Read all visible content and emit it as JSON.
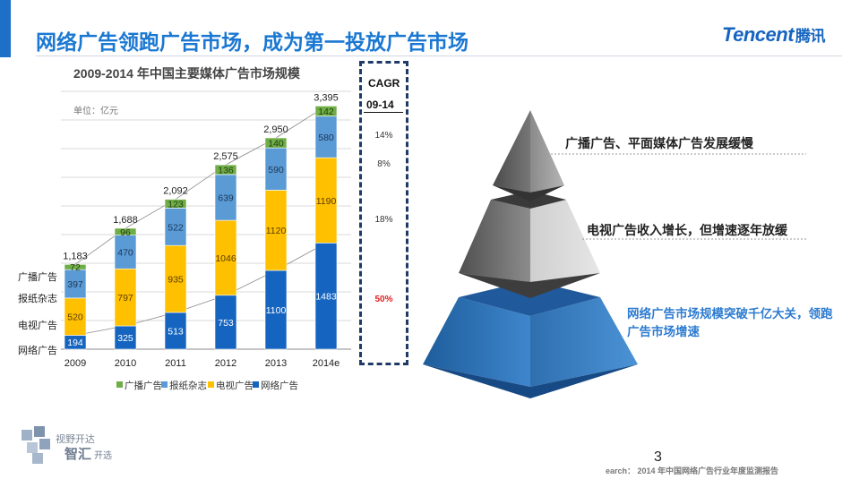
{
  "slide": {
    "title": "网络广告领跑广告市场，成为第一投放广告市场",
    "logo_text": "Tencent",
    "logo_cn": "腾讯",
    "page_number": "3",
    "source": "earch： 2014 年中国网络广告行业年度监测报告",
    "watermark_line1": "视野开达",
    "watermark_line2": "智汇",
    "watermark_line2_small": "开选",
    "accent_color": "#1a78d2"
  },
  "chart_data": {
    "type": "bar",
    "title": "2009-2014 年中国主要媒体广告市场规模",
    "unit_label": "单位：亿元",
    "categories": [
      "2009",
      "2010",
      "2011",
      "2012",
      "2013",
      "2014e"
    ],
    "stacked": true,
    "series": [
      {
        "name": "网络广告",
        "color": "#1565c0",
        "values": [
          194,
          325,
          513,
          753,
          1100,
          1483
        ]
      },
      {
        "name": "电视广告",
        "color": "#ffc000",
        "values": [
          520,
          797,
          935,
          1046,
          1120,
          1190
        ]
      },
      {
        "name": "报纸杂志",
        "color": "#5b9bd5",
        "values": [
          397,
          470,
          522,
          639,
          590,
          580
        ]
      },
      {
        "name": "广播广告",
        "color": "#70ad47",
        "values": [
          72,
          96,
          123,
          136,
          140,
          142
        ]
      }
    ],
    "totals": [
      "1,183",
      "1,688",
      "2,092",
      "2,575",
      "2,950",
      "3,395"
    ],
    "ylim": [
      0,
      3600
    ],
    "legend": [
      "广播广告",
      "报纸杂志",
      "电视广告",
      "网络广告"
    ],
    "legend_position": "bottom",
    "row_labels": [
      "广播广告",
      "报纸杂志",
      "电视广告",
      "网络广告"
    ],
    "cagr_header": [
      "CAGR",
      "09-14"
    ],
    "cagr_values": [
      {
        "text": "14%",
        "highlight": false
      },
      {
        "text": "8%",
        "highlight": false
      },
      {
        "text": "18%",
        "highlight": false
      },
      {
        "text": "50%",
        "highlight": true
      }
    ]
  },
  "pyramid": {
    "top_text": "广播广告、平面媒体广告发展缓慢",
    "middle_text": "电视广告收入增长，但增速逐年放缓",
    "bottom_text": "网络广告市场规模突破千亿大关，领跑广告市场增速"
  }
}
